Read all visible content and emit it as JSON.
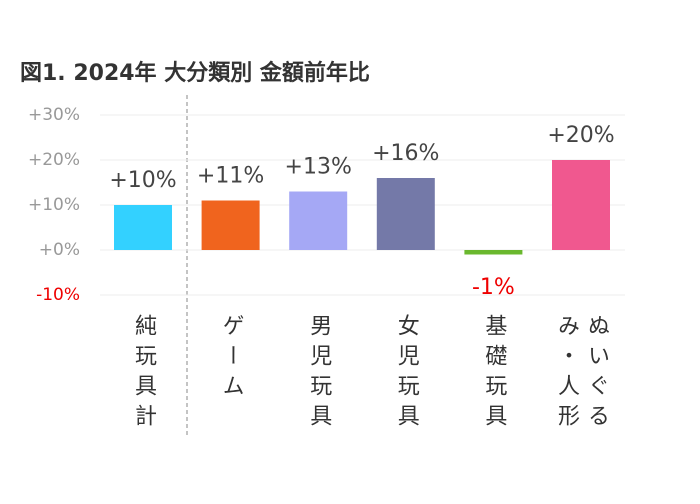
{
  "chart_data": {
    "type": "bar",
    "title": "図1. 2024年 大分類別 金額前年比",
    "categories": [
      "純玩具計",
      "ゲーム",
      "男児玩具",
      "女児玩具",
      "基礎玩具",
      "ぬいぐるみ・人形"
    ],
    "values": [
      10,
      11,
      13,
      16,
      -1,
      20
    ],
    "value_labels": [
      "+10%",
      "+11%",
      "+13%",
      "+16%",
      "-1%",
      "+20%"
    ],
    "colors": [
      "#33d1ff",
      "#f0641e",
      "#a5a8f5",
      "#7479a8",
      "#6ab82e",
      "#f0588f"
    ],
    "ylim": [
      -10,
      30
    ],
    "yticks": [
      {
        "value": -10,
        "label": "-10%"
      },
      {
        "value": 0,
        "label": "+0%"
      },
      {
        "value": 10,
        "label": "+10%"
      },
      {
        "value": 20,
        "label": "+20%"
      },
      {
        "value": 30,
        "label": "+30%"
      }
    ],
    "grid": true
  }
}
